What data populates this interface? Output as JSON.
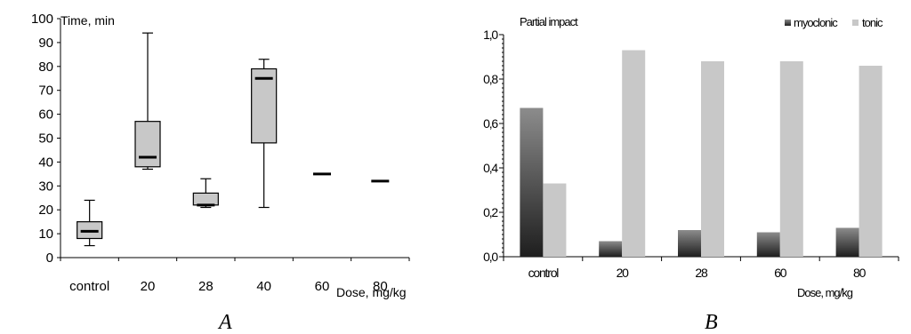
{
  "chart_data": [
    {
      "type": "box",
      "panel_label": "A",
      "title": "Time, min",
      "xlabel": "Dose, mg/kg",
      "ylabel": "",
      "ylim": [
        0,
        100
      ],
      "yticks": [
        "0",
        "10",
        "20",
        "30",
        "40",
        "50",
        "60",
        "70",
        "80",
        "90",
        "100"
      ],
      "categories": [
        "control",
        "20",
        "28",
        "40",
        "60",
        "80"
      ],
      "grid": false,
      "box_color": "#c8c8c8",
      "boxes": [
        {
          "min": 5,
          "q1": 8,
          "median": 11,
          "q3": 15,
          "max": 24
        },
        {
          "min": 37,
          "q1": 38,
          "median": 42,
          "q3": 57,
          "max": 94
        },
        {
          "min": 21,
          "q1": 22,
          "median": 22,
          "q3": 27,
          "max": 33
        },
        {
          "min": 21,
          "q1": 48,
          "median": 75,
          "q3": 79,
          "max": 83
        },
        {
          "median": 35
        },
        {
          "median": 32
        }
      ]
    },
    {
      "type": "bar",
      "panel_label": "B",
      "title": "Partial impact",
      "xlabel": "Dose, mg/kg",
      "ylabel": "",
      "ylim": [
        0,
        1.0
      ],
      "yticks": [
        "0,0",
        "0,2",
        "0,4",
        "0,6",
        "0,8",
        "1,0"
      ],
      "categories": [
        "control",
        "20",
        "28",
        "60",
        "80"
      ],
      "legend_position": "top-right",
      "grid": false,
      "series": [
        {
          "name": "myoclonic",
          "values": [
            0.67,
            0.07,
            0.12,
            0.11,
            0.13
          ],
          "color_top": "#8c8c8c",
          "color_bottom": "#1e1e1e"
        },
        {
          "name": "tonic",
          "values": [
            0.33,
            0.93,
            0.88,
            0.88,
            0.86
          ],
          "color_top": "#c8c8c8",
          "color_bottom": "#c8c8c8"
        }
      ]
    }
  ]
}
